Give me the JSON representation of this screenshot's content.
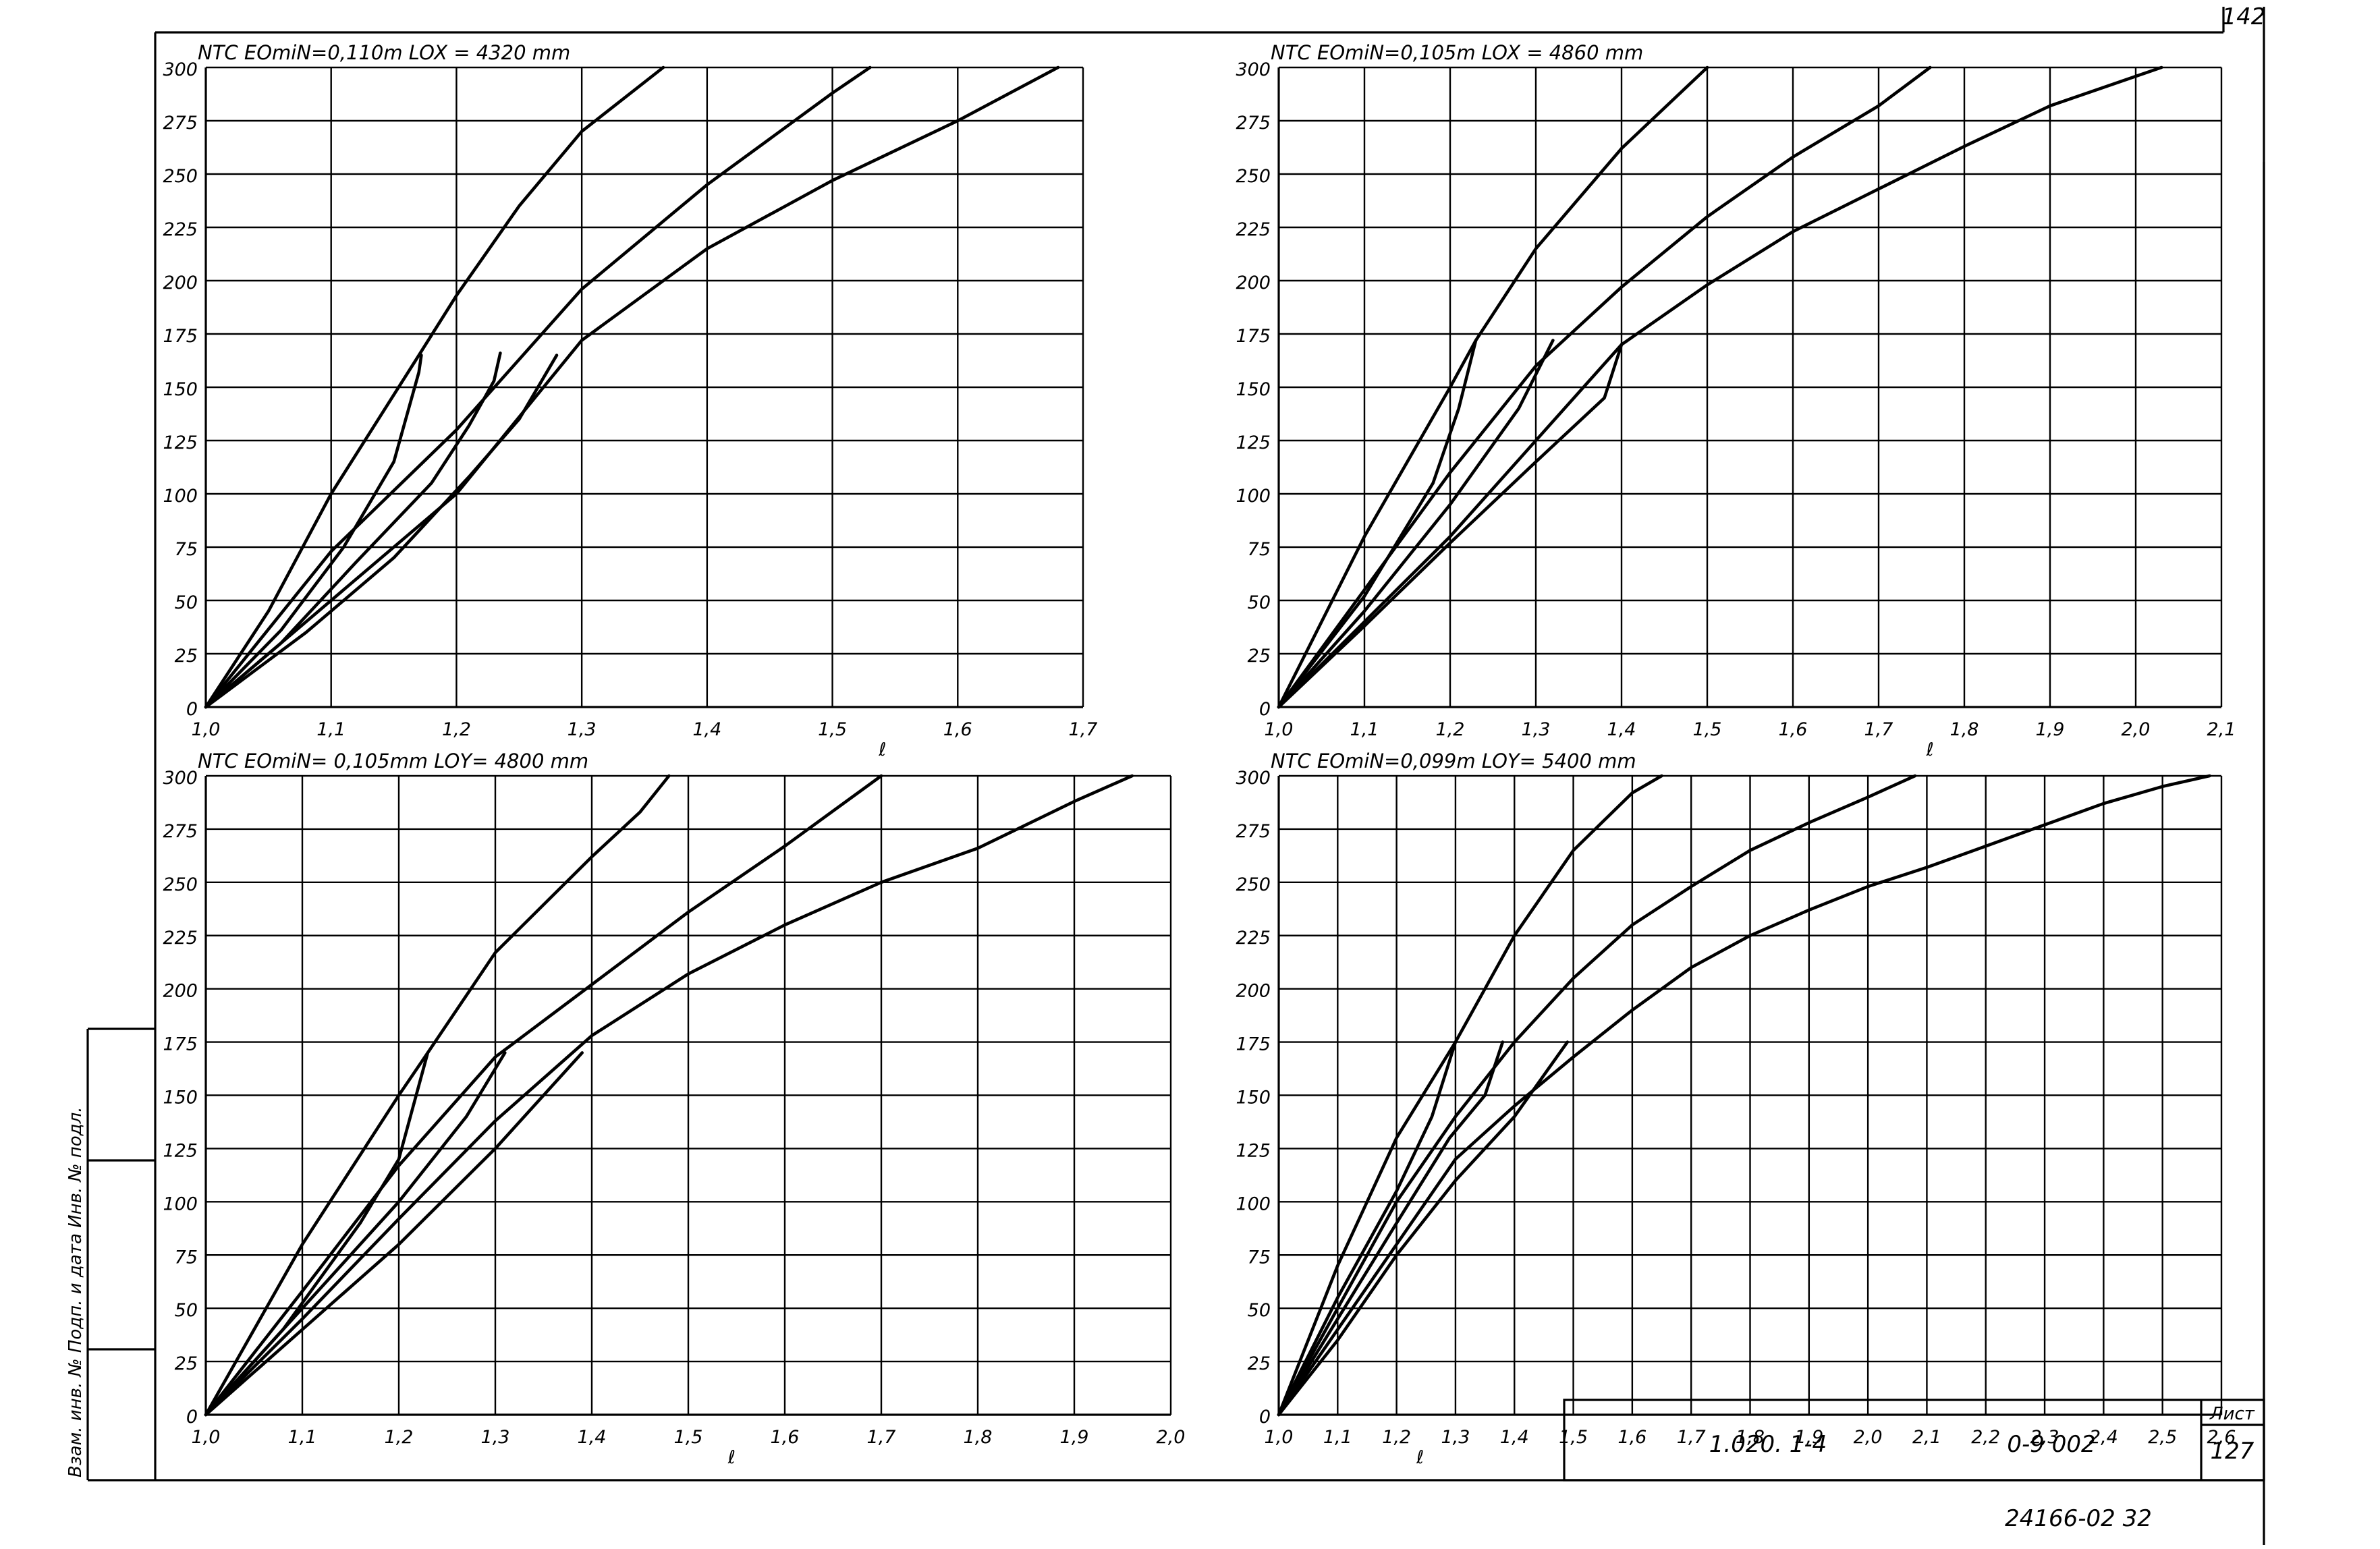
{
  "sheet": {
    "page_number": "142",
    "stamp_designation": "1.020. 1-4",
    "stamp_code": "0-9 002",
    "stamp_sheet_label": "Лист",
    "stamp_sheet_number": "127",
    "bottom_note": "24166-02 32",
    "side_note": "Взам. инв. № Подп. и дата Инв. № подл."
  },
  "chart_data": [
    {
      "type": "line",
      "title": "NТС  EOmiN=0,110m      LOX = 4320 mm",
      "ylabel": "NТС",
      "xlabel": "ℓ",
      "x_ticks": [
        "1,0",
        "1,1",
        "1,2",
        "1,3",
        "1,4",
        "1,5",
        "1,6",
        "1,7"
      ],
      "x_tick_values": [
        1.0,
        1.1,
        1.2,
        1.3,
        1.4,
        1.5,
        1.6,
        1.7
      ],
      "y_ticks": [
        "0",
        "25",
        "50",
        "75",
        "100",
        "125",
        "150",
        "175",
        "200",
        "225",
        "250",
        "275",
        "300"
      ],
      "xlim": [
        1.0,
        1.7
      ],
      "ylim": [
        0,
        300
      ],
      "grid": true,
      "series": [
        {
          "values": [
            [
              1.0,
              0
            ],
            [
              1.05,
              45
            ],
            [
              1.1,
              100
            ],
            [
              1.17,
              165
            ],
            [
              1.2,
              193
            ],
            [
              1.25,
              235
            ],
            [
              1.3,
              270
            ],
            [
              1.365,
              300
            ]
          ]
        },
        {
          "values": [
            [
              1.0,
              0
            ],
            [
              1.1,
              73
            ],
            [
              1.2,
              130
            ],
            [
              1.3,
              196
            ],
            [
              1.4,
              245
            ],
            [
              1.5,
              288
            ],
            [
              1.53,
              300
            ]
          ]
        },
        {
          "values": [
            [
              1.0,
              0
            ],
            [
              1.1,
              50
            ],
            [
              1.2,
              100
            ],
            [
              1.3,
              172
            ],
            [
              1.4,
              215
            ],
            [
              1.5,
              247
            ],
            [
              1.6,
              275
            ],
            [
              1.68,
              300
            ]
          ]
        },
        {
          "values": [
            [
              1.0,
              0
            ],
            [
              1.06,
              36
            ],
            [
              1.11,
              75
            ],
            [
              1.15,
              115
            ],
            [
              1.17,
              157
            ],
            [
              1.172,
              165
            ]
          ]
        },
        {
          "values": [
            [
              1.0,
              0
            ],
            [
              1.06,
              30
            ],
            [
              1.12,
              68
            ],
            [
              1.18,
              105
            ],
            [
              1.21,
              132
            ],
            [
              1.23,
              153
            ],
            [
              1.235,
              166
            ]
          ]
        },
        {
          "values": [
            [
              1.0,
              0
            ],
            [
              1.08,
              35
            ],
            [
              1.15,
              70
            ],
            [
              1.21,
              108
            ],
            [
              1.25,
              135
            ],
            [
              1.28,
              165
            ]
          ]
        }
      ]
    },
    {
      "type": "line",
      "title": "NТС  EOmiN=0,105m      LOX = 4860 mm",
      "ylabel": "NТС",
      "xlabel": "ℓ",
      "x_ticks": [
        "1,0",
        "1,1",
        "1,2",
        "1,3",
        "1,4",
        "1,5",
        "1,6",
        "1,7",
        "1,8",
        "1,9",
        "2,0",
        "2,1"
      ],
      "x_tick_values": [
        1.0,
        1.1,
        1.2,
        1.3,
        1.4,
        1.5,
        1.6,
        1.7,
        1.8,
        1.9,
        2.0,
        2.1
      ],
      "y_ticks": [
        "0",
        "25",
        "50",
        "75",
        "100",
        "125",
        "150",
        "175",
        "200",
        "225",
        "250",
        "275",
        "300"
      ],
      "xlim": [
        1.0,
        2.1
      ],
      "ylim": [
        0,
        300
      ],
      "grid": true,
      "series": [
        {
          "values": [
            [
              1.0,
              0
            ],
            [
              1.1,
              80
            ],
            [
              1.2,
              150
            ],
            [
              1.23,
              172
            ],
            [
              1.3,
              215
            ],
            [
              1.4,
              262
            ],
            [
              1.5,
              300
            ]
          ]
        },
        {
          "values": [
            [
              1.0,
              0
            ],
            [
              1.1,
              55
            ],
            [
              1.2,
              110
            ],
            [
              1.3,
              160
            ],
            [
              1.4,
              197
            ],
            [
              1.5,
              230
            ],
            [
              1.6,
              258
            ],
            [
              1.7,
              282
            ],
            [
              1.76,
              300
            ]
          ]
        },
        {
          "values": [
            [
              1.0,
              0
            ],
            [
              1.1,
              40
            ],
            [
              1.2,
              80
            ],
            [
              1.3,
              125
            ],
            [
              1.4,
              170
            ],
            [
              1.5,
              198
            ],
            [
              1.6,
              223
            ],
            [
              1.7,
              243
            ],
            [
              1.8,
              263
            ],
            [
              1.9,
              282
            ],
            [
              2.03,
              300
            ]
          ]
        },
        {
          "values": [
            [
              1.0,
              0
            ],
            [
              1.1,
              52
            ],
            [
              1.18,
              105
            ],
            [
              1.21,
              140
            ],
            [
              1.23,
              172
            ]
          ]
        },
        {
          "values": [
            [
              1.0,
              0
            ],
            [
              1.1,
              45
            ],
            [
              1.2,
              95
            ],
            [
              1.28,
              140
            ],
            [
              1.32,
              172
            ]
          ]
        },
        {
          "values": [
            [
              1.0,
              0
            ],
            [
              1.1,
              38
            ],
            [
              1.2,
              77
            ],
            [
              1.3,
              115
            ],
            [
              1.38,
              145
            ],
            [
              1.4,
              170
            ]
          ]
        }
      ]
    },
    {
      "type": "line",
      "title": "NТС  EOmiN= 0,105mm     LOY= 4800 mm",
      "ylabel": "NТС",
      "xlabel": "ℓ",
      "x_ticks": [
        "1,0",
        "1,1",
        "1,2",
        "1,3",
        "1,4",
        "1,5",
        "1,6",
        "1,7",
        "1,8",
        "1,9",
        "2,0"
      ],
      "x_tick_values": [
        1.0,
        1.1,
        1.2,
        1.3,
        1.4,
        1.5,
        1.6,
        1.7,
        1.8,
        1.9,
        2.0
      ],
      "y_ticks": [
        "0",
        "25",
        "50",
        "75",
        "100",
        "125",
        "150",
        "175",
        "200",
        "225",
        "250",
        "275",
        "300"
      ],
      "xlim": [
        1.0,
        2.0
      ],
      "ylim": [
        0,
        300
      ],
      "grid": true,
      "series": [
        {
          "values": [
            [
              1.0,
              0
            ],
            [
              1.1,
              80
            ],
            [
              1.2,
              150
            ],
            [
              1.23,
              170
            ],
            [
              1.3,
              217
            ],
            [
              1.4,
              262
            ],
            [
              1.45,
              283
            ],
            [
              1.48,
              300
            ]
          ]
        },
        {
          "values": [
            [
              1.0,
              0
            ],
            [
              1.1,
              58
            ],
            [
              1.2,
              117
            ],
            [
              1.3,
              168
            ],
            [
              1.4,
              202
            ],
            [
              1.5,
              236
            ],
            [
              1.6,
              267
            ],
            [
              1.7,
              300
            ]
          ]
        },
        {
          "values": [
            [
              1.0,
              0
            ],
            [
              1.1,
              45
            ],
            [
              1.2,
              92
            ],
            [
              1.3,
              138
            ],
            [
              1.4,
              178
            ],
            [
              1.5,
              207
            ],
            [
              1.6,
              230
            ],
            [
              1.7,
              250
            ],
            [
              1.8,
              266
            ],
            [
              1.9,
              288
            ],
            [
              1.96,
              300
            ]
          ]
        },
        {
          "values": [
            [
              1.0,
              0
            ],
            [
              1.08,
              40
            ],
            [
              1.16,
              90
            ],
            [
              1.2,
              120
            ],
            [
              1.23,
              170
            ]
          ]
        },
        {
          "values": [
            [
              1.0,
              0
            ],
            [
              1.1,
              50
            ],
            [
              1.2,
              100
            ],
            [
              1.27,
              140
            ],
            [
              1.31,
              170
            ]
          ]
        },
        {
          "values": [
            [
              1.0,
              0
            ],
            [
              1.1,
              40
            ],
            [
              1.2,
              80
            ],
            [
              1.3,
              125
            ],
            [
              1.39,
              170
            ]
          ]
        }
      ]
    },
    {
      "type": "line",
      "title": "NТС  EOmiN=0,099m      LOY= 5400 mm",
      "ylabel": "NТС",
      "xlabel": "ℓ",
      "x_ticks": [
        "1,0",
        "1,1",
        "1,2",
        "1,3",
        "1,4",
        "1,5",
        "1,6",
        "1,7",
        "1,8",
        "1,9",
        "2,0",
        "2,1",
        "2,2",
        "2,3",
        "2,4",
        "2,5",
        "2,6"
      ],
      "x_tick_values": [
        1.0,
        1.1,
        1.2,
        1.3,
        1.4,
        1.5,
        1.6,
        1.7,
        1.8,
        1.9,
        2.0,
        2.1,
        2.2,
        2.3,
        2.4,
        2.5,
        2.6
      ],
      "y_ticks": [
        "0",
        "25",
        "50",
        "75",
        "100",
        "125",
        "150",
        "175",
        "200",
        "225",
        "250",
        "275",
        "300"
      ],
      "xlim": [
        1.0,
        2.6
      ],
      "ylim": [
        0,
        300
      ],
      "grid": true,
      "series": [
        {
          "values": [
            [
              1.0,
              0
            ],
            [
              1.1,
              70
            ],
            [
              1.2,
              130
            ],
            [
              1.3,
              175
            ],
            [
              1.4,
              225
            ],
            [
              1.5,
              265
            ],
            [
              1.6,
              292
            ],
            [
              1.65,
              300
            ]
          ]
        },
        {
          "values": [
            [
              1.0,
              0
            ],
            [
              1.1,
              50
            ],
            [
              1.2,
              100
            ],
            [
              1.3,
              140
            ],
            [
              1.4,
              175
            ],
            [
              1.5,
              205
            ],
            [
              1.6,
              230
            ],
            [
              1.7,
              248
            ],
            [
              1.8,
              265
            ],
            [
              1.9,
              278
            ],
            [
              2.0,
              290
            ],
            [
              2.08,
              300
            ]
          ]
        },
        {
          "values": [
            [
              1.0,
              0
            ],
            [
              1.1,
              40
            ],
            [
              1.2,
              80
            ],
            [
              1.3,
              120
            ],
            [
              1.4,
              145
            ],
            [
              1.5,
              168
            ],
            [
              1.6,
              190
            ],
            [
              1.7,
              210
            ],
            [
              1.8,
              225
            ],
            [
              1.9,
              237
            ],
            [
              2.0,
              248
            ],
            [
              2.1,
              257
            ],
            [
              2.2,
              267
            ],
            [
              2.3,
              277
            ],
            [
              2.4,
              287
            ],
            [
              2.5,
              295
            ],
            [
              2.58,
              300
            ]
          ]
        },
        {
          "values": [
            [
              1.0,
              0
            ],
            [
              1.1,
              55
            ],
            [
              1.2,
              105
            ],
            [
              1.26,
              140
            ],
            [
              1.3,
              175
            ]
          ]
        },
        {
          "values": [
            [
              1.0,
              0
            ],
            [
              1.1,
              45
            ],
            [
              1.2,
              90
            ],
            [
              1.29,
              130
            ],
            [
              1.35,
              150
            ],
            [
              1.38,
              175
            ]
          ]
        },
        {
          "values": [
            [
              1.0,
              0
            ],
            [
              1.1,
              35
            ],
            [
              1.2,
              75
            ],
            [
              1.3,
              110
            ],
            [
              1.4,
              140
            ],
            [
              1.49,
              175
            ]
          ]
        }
      ]
    }
  ]
}
